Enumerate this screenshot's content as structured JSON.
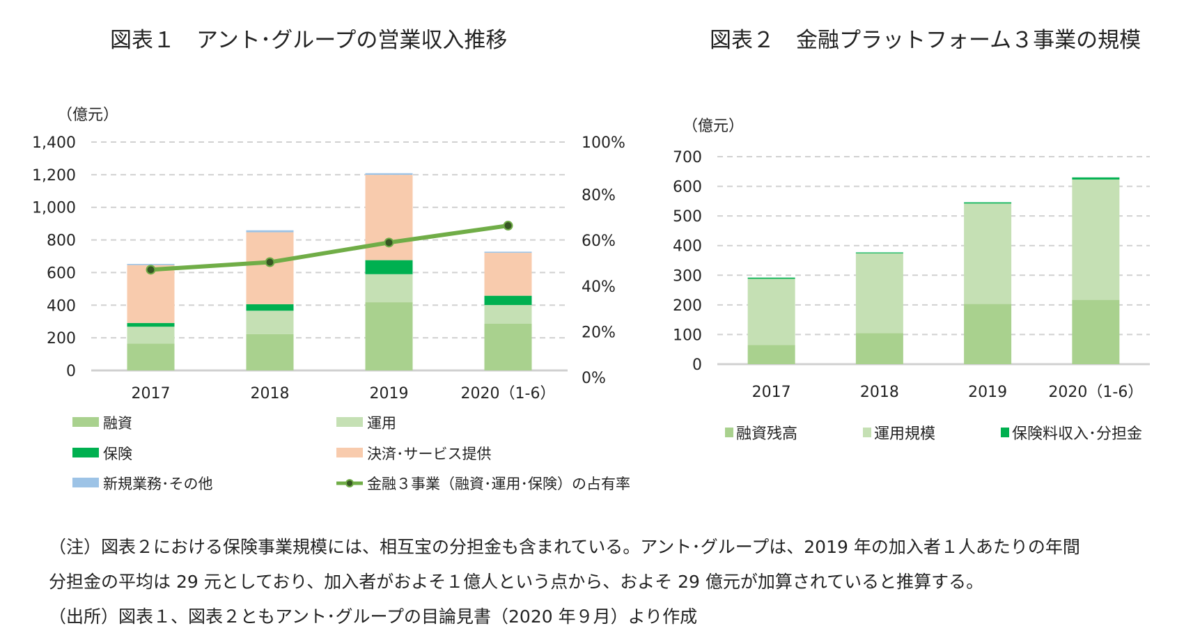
{
  "chart_data": [
    {
      "type": "bar",
      "stacked": true,
      "title": "図表１　アント･グループの営業収入推移",
      "ylabel": "（億元）",
      "categories": [
        "2017",
        "2018",
        "2019",
        "2020（1-6）"
      ],
      "ylim": [
        0,
        1400
      ],
      "yticks": [
        "0",
        "200",
        "400",
        "600",
        "800",
        "1,000",
        "1,200",
        "1,400"
      ],
      "y2lim": [
        0,
        100
      ],
      "y2ticks": [
        "0%",
        "20%",
        "40%",
        "60%",
        "80%",
        "100%"
      ],
      "grid": true,
      "legend_placement": "bottom",
      "series": [
        {
          "name": "融資",
          "color": "#a9d18e",
          "values": [
            165,
            223,
            418,
            286
          ]
        },
        {
          "name": "運用",
          "color": "#c5e0b4",
          "values": [
            103,
            143,
            172,
            115
          ]
        },
        {
          "name": "保険",
          "color": "#00b050",
          "values": [
            23,
            40,
            86,
            57
          ]
        },
        {
          "name": "決済･サービス提供",
          "color": "#f8cbad",
          "values": [
            355,
            441,
            523,
            263
          ]
        },
        {
          "name": "新規業務･その他",
          "color": "#9dc3e6",
          "values": [
            7,
            12,
            10,
            7
          ]
        }
      ],
      "line": {
        "name": "金融３事業（融資･運用･保険）の占有率",
        "color": "#70ad47",
        "marker_color": "#375623",
        "axis": "right",
        "values": [
          44.1,
          47.4,
          56.0,
          63.4
        ]
      }
    },
    {
      "type": "bar",
      "stacked": true,
      "title": "図表２　金融プラットフォーム３事業の規模",
      "ylabel": "（億元）",
      "categories": [
        "2017",
        "2018",
        "2019",
        "2020（1-6）"
      ],
      "ylim": [
        0,
        700
      ],
      "yticks": [
        "0",
        "100",
        "200",
        "300",
        "400",
        "500",
        "600",
        "700"
      ],
      "grid": true,
      "legend_placement": "bottom",
      "series": [
        {
          "name": "融資残高",
          "color": "#a9d18e",
          "values": [
            65,
            105,
            203,
            217
          ]
        },
        {
          "name": "運用規模",
          "color": "#c5e0b4",
          "values": [
            223,
            269,
            339,
            406
          ]
        },
        {
          "name": "保険料収入･分担金",
          "color": "#00b050",
          "values": [
            4,
            3,
            4,
            7
          ]
        }
      ]
    }
  ],
  "notes": [
    "（注）図表２における保険事業規模には、相互宝の分担金も含まれている。アント･グループは、2019 年の加入者１人あたりの年間",
    "分担金の平均は 29 元としており、加入者がおよそ１億人という点から、およそ 29 億元が加算されていると推算する。",
    "（出所）図表１、図表２ともアント･グループの目論見書（2020 年９月）より作成"
  ]
}
